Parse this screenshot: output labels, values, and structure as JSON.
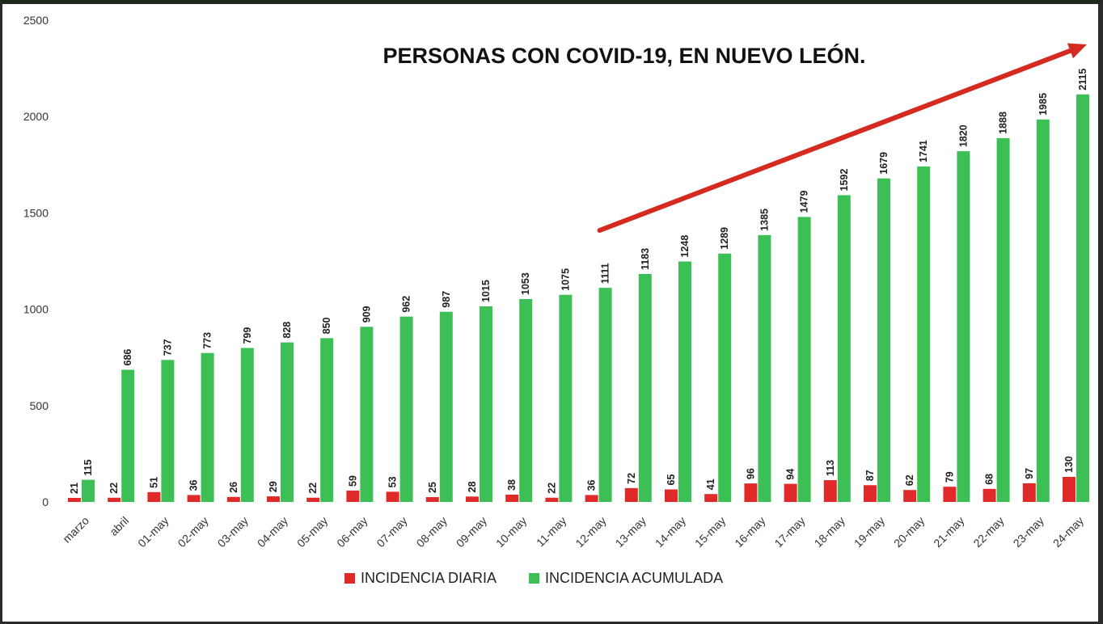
{
  "chart_data": {
    "type": "bar",
    "title": "PERSONAS CON COVID-19, EN NUEVO LEÓN.",
    "xlabel": "",
    "ylabel": "",
    "ylim": [
      0,
      2500
    ],
    "yticks": [
      0,
      500,
      1000,
      1500,
      2000,
      2500
    ],
    "grid": false,
    "legend_position": "bottom",
    "categories": [
      "marzo",
      "abril",
      "01-may",
      "02-may",
      "03-may",
      "04-may",
      "05-may",
      "06-may",
      "07-may",
      "08-may",
      "09-may",
      "10-may",
      "11-may",
      "12-may",
      "13-may",
      "14-may",
      "15-may",
      "16-may",
      "17-may",
      "18-may",
      "19-may",
      "20-may",
      "21-may",
      "22-may",
      "23-may",
      "24-may"
    ],
    "series": [
      {
        "name": "INCIDENCIA DIARIA",
        "color": "#e02a2a",
        "values": [
          21,
          22,
          51,
          36,
          26,
          29,
          22,
          59,
          53,
          25,
          28,
          38,
          22,
          36,
          72,
          65,
          41,
          96,
          94,
          113,
          87,
          62,
          79,
          68,
          97,
          130
        ]
      },
      {
        "name": "INCIDENCIA ACUMULADA",
        "color": "#3cbf55",
        "values": [
          115,
          686,
          737,
          773,
          799,
          828,
          850,
          909,
          962,
          987,
          1015,
          1053,
          1075,
          1111,
          1183,
          1248,
          1289,
          1385,
          1479,
          1592,
          1679,
          1741,
          1820,
          1888,
          1985,
          2115
        ]
      }
    ],
    "annotations": [
      {
        "type": "trend-arrow",
        "color": "#d42a20",
        "from_category": "12-may",
        "to_category": "24-may"
      }
    ]
  }
}
